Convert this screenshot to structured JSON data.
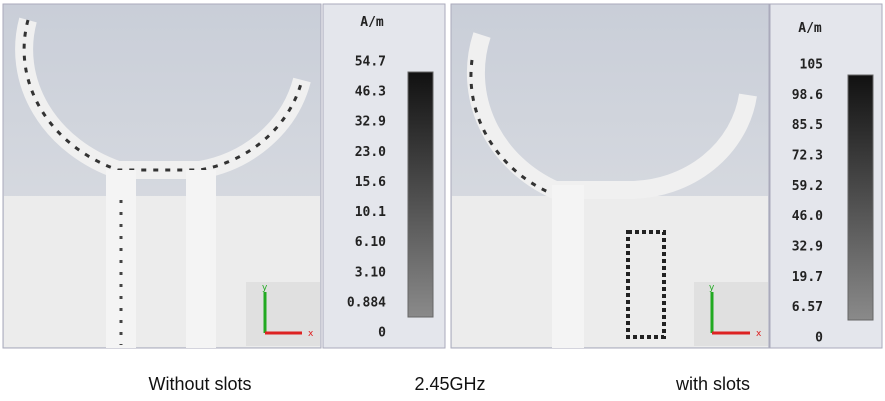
{
  "left_panel": {
    "unit": "A/m",
    "scale_labels": [
      "54.7",
      "46.3",
      "32.9",
      "23.0",
      "15.6",
      "10.1",
      "6.10",
      "3.10",
      "0.884",
      "0"
    ],
    "axis_y": "y",
    "axis_x": "x"
  },
  "right_panel": {
    "unit": "A/m",
    "scale_labels": [
      "105",
      "98.6",
      "85.5",
      "72.3",
      "59.2",
      "46.0",
      "32.9",
      "19.7",
      "6.57",
      "0"
    ],
    "axis_y": "y",
    "axis_x": "x"
  },
  "captions": {
    "left": "Without slots",
    "center": "2.45GHz",
    "right": "with slots"
  }
}
